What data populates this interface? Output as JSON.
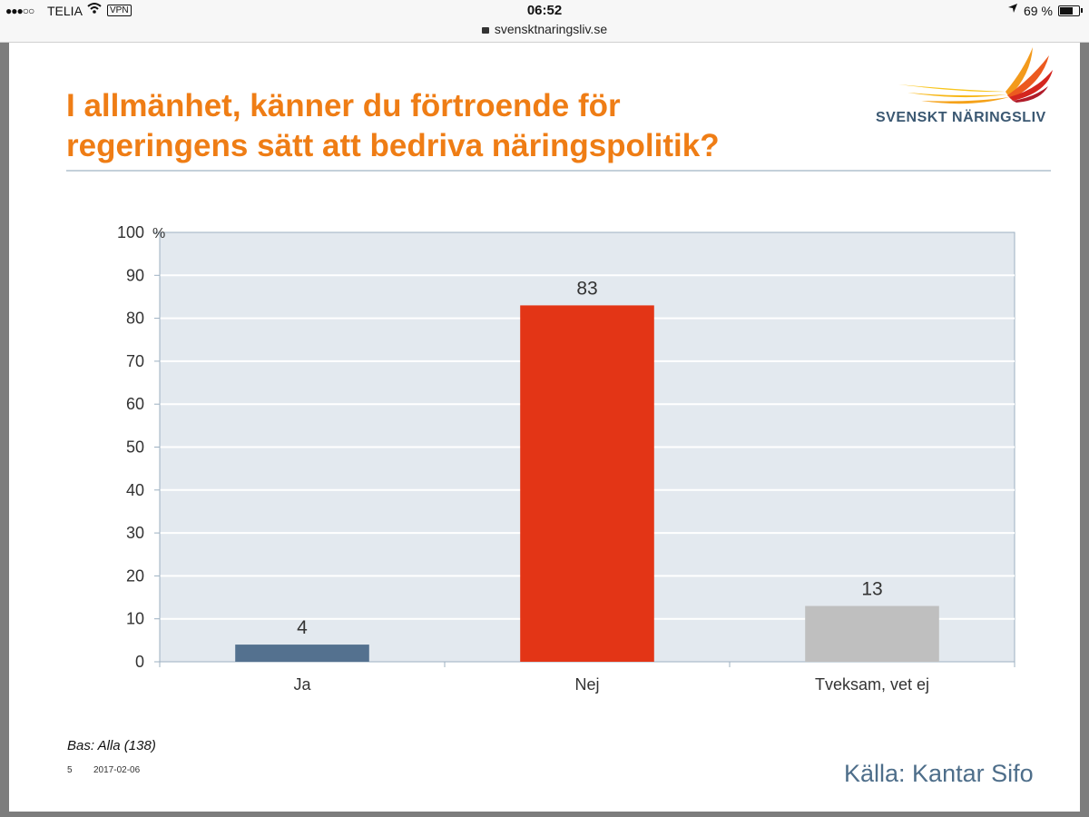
{
  "status_bar": {
    "carrier": "TELIA",
    "vpn": "VPN",
    "time": "06:52",
    "url": "svensktnaringsliv.se",
    "battery_percent": "69 %",
    "battery_level": 0.69
  },
  "slide": {
    "title_lines": [
      "I allmänhet, känner du förtroende för",
      "regeringens sätt att bedriva näringspolitik?"
    ],
    "logo_text": "SVENSKT NÄRINGSLIV",
    "base_note": "Bas: Alla (138)",
    "page_number": "5",
    "date": "2017-02-06",
    "source": "Källa: Kantar Sifo"
  },
  "colors": {
    "title": "#ef7d15",
    "plot_bg": "#e3e9ef",
    "axis": "#9db0c2"
  },
  "chart_data": {
    "type": "bar",
    "title": "I allmänhet, känner du förtroende för regeringens sätt att bedriva näringspolitik?",
    "categories": [
      "Ja",
      "Nej",
      "Tveksam, vet ej"
    ],
    "values": [
      4,
      83,
      13
    ],
    "colors": [
      "#54718f",
      "#e33516",
      "#bfbfbf"
    ],
    "ylabel": "%",
    "xlabel": "",
    "ylim": [
      0,
      100
    ],
    "yticks": [
      0,
      10,
      20,
      30,
      40,
      50,
      60,
      70,
      80,
      90,
      100
    ],
    "grid": true
  }
}
